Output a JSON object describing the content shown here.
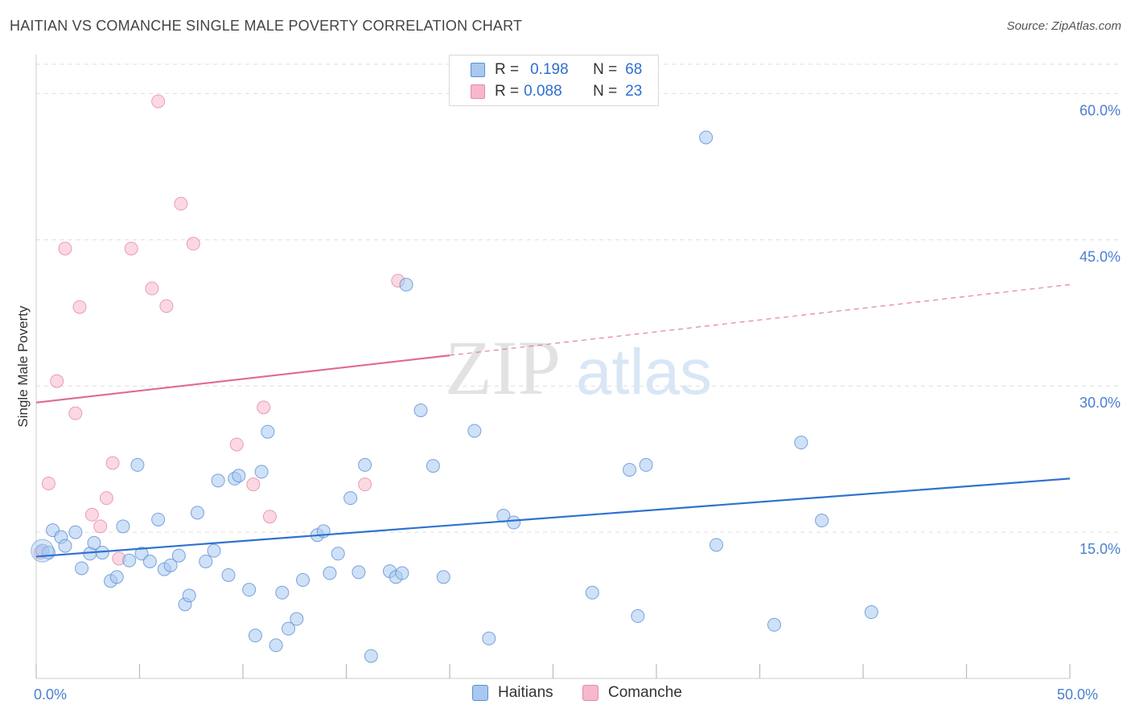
{
  "title": "HAITIAN VS COMANCHE SINGLE MALE POVERTY CORRELATION CHART",
  "source": "Source: ZipAtlas.com",
  "legend": {
    "rows": [
      {
        "r_label": "R =",
        "r_value": "0.198",
        "n_label": "N =",
        "n_value": "68",
        "color": "#a8c8f0"
      },
      {
        "r_label": "R =",
        "r_value": "0.088",
        "n_label": "N =",
        "n_value": "23",
        "color": "#f7b8cb"
      }
    ]
  },
  "bottom_legend": [
    {
      "label": "Haitians",
      "color": "#a8c8f0"
    },
    {
      "label": "Comanche",
      "color": "#f7b8cb"
    }
  ],
  "watermark": {
    "part1": "ZIP",
    "part2": "atlas"
  },
  "colors": {
    "haitian_fill": "#a8c8f0",
    "haitian_stroke": "#5b8fd6",
    "haitian_line": "#2f72d0",
    "comanche_fill": "#f7b8cb",
    "comanche_stroke": "#e58aa5",
    "comanche_line": "#e06a90",
    "grid": "#dddddd",
    "axis_text": "#4a7fd0"
  },
  "chart_data": {
    "type": "scatter",
    "title": "HAITIAN VS COMANCHE SINGLE MALE POVERTY CORRELATION CHART",
    "xlabel": "",
    "ylabel": "Single Male Poverty",
    "xlim": [
      0,
      50
    ],
    "ylim": [
      0,
      63
    ],
    "x_tick_labels": [
      {
        "value": 0,
        "label": "0.0%"
      },
      {
        "value": 50,
        "label": "50.0%"
      }
    ],
    "y_tick_labels": [
      {
        "value": 15,
        "label": "15.0%"
      },
      {
        "value": 30,
        "label": "30.0%"
      },
      {
        "value": 45,
        "label": "45.0%"
      },
      {
        "value": 60,
        "label": "60.0%"
      }
    ],
    "series": [
      {
        "name": "Haitians",
        "R": 0.198,
        "N": 68,
        "trend": {
          "x0": 0,
          "y0": 12.5,
          "x1": 50,
          "y1": 20.5,
          "dashed_from": null
        },
        "points": [
          [
            0.3,
            13.1
          ],
          [
            0.6,
            12.9
          ],
          [
            0.8,
            15.2
          ],
          [
            1.2,
            14.5
          ],
          [
            1.4,
            13.6
          ],
          [
            1.9,
            15.0
          ],
          [
            2.2,
            11.3
          ],
          [
            2.6,
            12.8
          ],
          [
            2.8,
            13.9
          ],
          [
            3.2,
            12.9
          ],
          [
            3.6,
            10.0
          ],
          [
            3.9,
            10.4
          ],
          [
            4.2,
            15.6
          ],
          [
            4.5,
            12.1
          ],
          [
            4.9,
            21.9
          ],
          [
            5.1,
            12.8
          ],
          [
            5.5,
            12.0
          ],
          [
            5.9,
            16.3
          ],
          [
            6.2,
            11.2
          ],
          [
            6.5,
            11.6
          ],
          [
            6.9,
            12.6
          ],
          [
            7.2,
            7.6
          ],
          [
            7.4,
            8.5
          ],
          [
            7.8,
            17.0
          ],
          [
            8.2,
            12.0
          ],
          [
            8.6,
            13.1
          ],
          [
            8.8,
            20.3
          ],
          [
            9.3,
            10.6
          ],
          [
            9.6,
            20.5
          ],
          [
            9.8,
            20.8
          ],
          [
            10.3,
            9.1
          ],
          [
            10.6,
            4.4
          ],
          [
            10.9,
            21.2
          ],
          [
            11.2,
            25.3
          ],
          [
            11.6,
            3.4
          ],
          [
            11.9,
            8.8
          ],
          [
            12.2,
            5.1
          ],
          [
            12.6,
            6.1
          ],
          [
            12.9,
            10.1
          ],
          [
            13.6,
            14.7
          ],
          [
            13.9,
            15.1
          ],
          [
            14.2,
            10.8
          ],
          [
            14.6,
            12.8
          ],
          [
            15.2,
            18.5
          ],
          [
            15.6,
            10.9
          ],
          [
            15.9,
            21.9
          ],
          [
            16.2,
            2.3
          ],
          [
            17.1,
            11.0
          ],
          [
            17.4,
            10.4
          ],
          [
            17.7,
            10.8
          ],
          [
            17.9,
            40.4
          ],
          [
            18.6,
            27.5
          ],
          [
            19.2,
            21.8
          ],
          [
            19.7,
            10.4
          ],
          [
            21.2,
            25.4
          ],
          [
            21.9,
            4.1
          ],
          [
            22.6,
            16.7
          ],
          [
            23.1,
            16.0
          ],
          [
            26.9,
            8.8
          ],
          [
            28.7,
            21.4
          ],
          [
            29.1,
            6.4
          ],
          [
            29.5,
            21.9
          ],
          [
            32.4,
            55.5
          ],
          [
            32.9,
            13.7
          ],
          [
            35.7,
            5.5
          ],
          [
            37.0,
            24.2
          ],
          [
            38.0,
            16.2
          ],
          [
            40.4,
            6.8
          ]
        ]
      },
      {
        "name": "Comanche",
        "R": 0.088,
        "N": 23,
        "trend": {
          "x0": 0,
          "y0": 28.3,
          "x1": 50,
          "y1": 40.4,
          "dashed_from": 20.0
        },
        "points": [
          [
            0.2,
            12.9
          ],
          [
            0.6,
            20.0
          ],
          [
            1.0,
            30.5
          ],
          [
            1.4,
            44.1
          ],
          [
            1.9,
            27.2
          ],
          [
            2.1,
            38.1
          ],
          [
            2.7,
            16.8
          ],
          [
            3.1,
            15.6
          ],
          [
            3.4,
            18.5
          ],
          [
            3.7,
            22.1
          ],
          [
            4.0,
            12.3
          ],
          [
            4.6,
            44.1
          ],
          [
            5.6,
            40.0
          ],
          [
            5.9,
            59.2
          ],
          [
            6.3,
            38.2
          ],
          [
            7.0,
            48.7
          ],
          [
            7.6,
            44.6
          ],
          [
            9.7,
            24.0
          ],
          [
            10.5,
            19.9
          ],
          [
            11.0,
            27.8
          ],
          [
            11.3,
            16.6
          ],
          [
            15.9,
            19.9
          ],
          [
            17.5,
            40.8
          ]
        ]
      }
    ]
  }
}
